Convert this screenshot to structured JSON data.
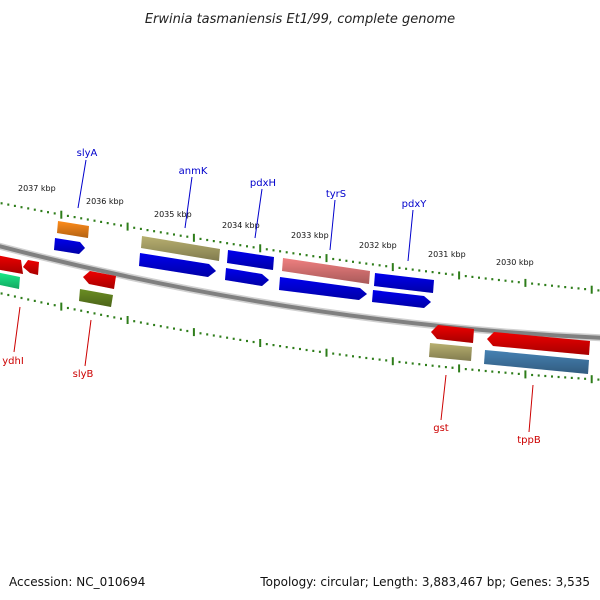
{
  "title": "Erwinia tasmaniensis Et1/99, complete genome",
  "accession": "Accession: NC_010694",
  "topology": "Topology: circular; Length: 3,883,467 bp; Genes: 3,535",
  "colors": {
    "backbone": "#808080",
    "tick": "#2e7d1a",
    "forward_label": "#0000cc",
    "reverse_label": "#cc0000"
  },
  "kbp_labels": [
    "2037 kbp",
    "2036 kbp",
    "2035 kbp",
    "2034 kbp",
    "2033 kbp",
    "2032 kbp",
    "2031 kbp",
    "2030 kbp"
  ],
  "gene_labels": {
    "forward": [
      "slyA",
      "anmK",
      "pdxH",
      "tyrS",
      "pdxY"
    ],
    "reverse": [
      "ydhI",
      "slyB",
      "gst",
      "tppB"
    ]
  }
}
